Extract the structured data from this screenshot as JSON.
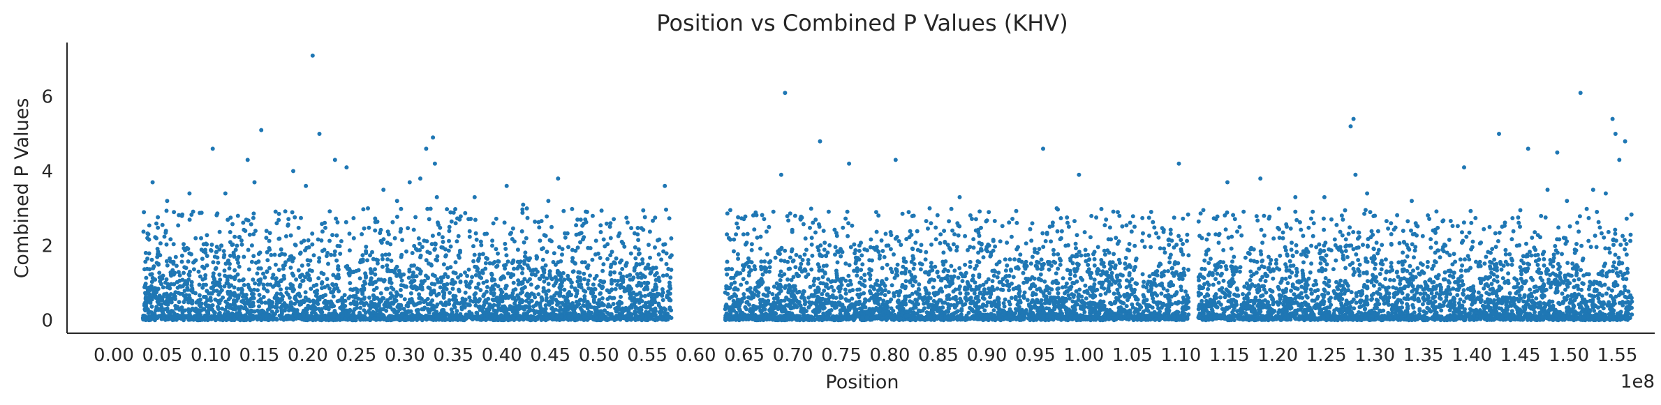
{
  "chart_data": {
    "type": "scatter",
    "title": "Position vs Combined P Values (KHV)",
    "xlabel": "Position",
    "ylabel": "Combined P Values",
    "x_offset_label": "1e8",
    "x_scale_factor": 100000000,
    "xlim": [
      0.0,
      1.6
    ],
    "ylim": [
      -0.35,
      7.45
    ],
    "xticks": [
      0.0,
      0.05,
      0.1,
      0.15,
      0.2,
      0.25,
      0.3,
      0.35,
      0.4,
      0.45,
      0.5,
      0.55,
      0.6,
      0.65,
      0.7,
      0.75,
      0.8,
      0.85,
      0.9,
      0.95,
      1.0,
      1.05,
      1.1,
      1.15,
      1.2,
      1.25,
      1.3,
      1.35,
      1.4,
      1.45,
      1.5,
      1.55
    ],
    "xtick_labels": [
      "0.00",
      "0.05",
      "0.10",
      "0.15",
      "0.20",
      "0.25",
      "0.30",
      "0.35",
      "0.40",
      "0.45",
      "0.50",
      "0.55",
      "0.60",
      "0.65",
      "0.70",
      "0.75",
      "0.80",
      "0.85",
      "0.90",
      "0.95",
      "1.00",
      "1.05",
      "1.10",
      "1.15",
      "1.20",
      "1.25",
      "1.30",
      "1.35",
      "1.40",
      "1.45",
      "1.50",
      "1.55"
    ],
    "yticks": [
      0,
      2,
      4,
      6
    ],
    "ytick_labels": [
      "0",
      "2",
      "4",
      "6"
    ],
    "grid": false,
    "marker_color": "#1f77b4",
    "series": [
      {
        "x": [
          0.04,
          0.055,
          0.062,
          0.078,
          0.09,
          0.102,
          0.115,
          0.128,
          0.138,
          0.145,
          0.152,
          0.168,
          0.185,
          0.198,
          0.205,
          0.212,
          0.228,
          0.24,
          0.262,
          0.278,
          0.292,
          0.305,
          0.316,
          0.322,
          0.329,
          0.331,
          0.333,
          0.346,
          0.372,
          0.405,
          0.422,
          0.448,
          0.458,
          0.486,
          0.512,
          0.54,
          0.568,
          0.632,
          0.688,
          0.692,
          0.708,
          0.728,
          0.758,
          0.786,
          0.806,
          0.841,
          0.872,
          0.902,
          0.958,
          0.972,
          0.995,
          1.035,
          1.098,
          1.148,
          1.182,
          1.218,
          1.248,
          1.275,
          1.278,
          1.28,
          1.292,
          1.338,
          1.392,
          1.428,
          1.458,
          1.478,
          1.488,
          1.498,
          1.512,
          1.525,
          1.538,
          1.545,
          1.548,
          1.552,
          1.558
        ],
        "y": [
          3.7,
          3.2,
          2.9,
          3.4,
          2.2,
          4.6,
          3.4,
          2.8,
          4.3,
          3.7,
          5.1,
          2.6,
          4.0,
          3.6,
          7.1,
          5.0,
          4.3,
          4.1,
          3.0,
          3.5,
          3.2,
          3.7,
          3.8,
          4.6,
          4.9,
          4.2,
          3.3,
          2.5,
          3.3,
          3.6,
          3.1,
          3.2,
          3.8,
          2.7,
          2.6,
          2.3,
          3.6,
          2.3,
          3.9,
          6.1,
          2.7,
          4.8,
          4.2,
          2.9,
          4.3,
          3.0,
          3.3,
          2.9,
          4.6,
          3.0,
          3.9,
          2.9,
          4.2,
          3.7,
          3.8,
          3.3,
          3.3,
          5.2,
          5.4,
          3.9,
          3.4,
          3.2,
          4.1,
          5.0,
          4.6,
          3.5,
          4.5,
          3.2,
          6.1,
          3.5,
          3.4,
          5.4,
          5.0,
          4.3,
          4.8
        ]
      }
    ],
    "dense_segments": [
      {
        "x_start": 0.03,
        "x_end": 0.575,
        "y_median": 0.55
      },
      {
        "x_start": 0.63,
        "x_end": 1.108,
        "y_median": 0.55
      },
      {
        "x_start": 1.118,
        "x_end": 1.565,
        "y_median": 0.55
      }
    ]
  }
}
